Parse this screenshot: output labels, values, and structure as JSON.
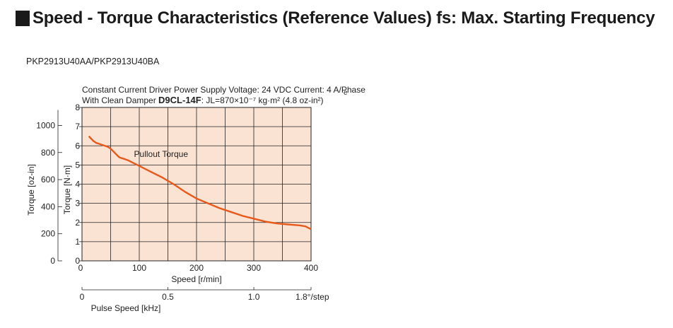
{
  "header": {
    "title": "Speed - Torque Characteristics (Reference Values) fs: Max. Starting Frequency"
  },
  "model": "PKP2913U40AA/PKP2913U40BA",
  "conditions": {
    "line1": "Constant Current Driver  Power Supply Voltage: 24 VDC  Current: 4 A/Phase",
    "line2_prefix": "With Clean Damper ",
    "damper_model": "D9CL-14F",
    "line2_suffix": ": JL=870×10⁻⁷ kg·m² (4.8 oz-in²)",
    "stray_mark": "e"
  },
  "chart_data": {
    "type": "line",
    "x": {
      "label": "Speed [r/min]",
      "lim": [
        0,
        400
      ],
      "major_ticks": [
        0,
        100,
        200,
        300,
        400
      ],
      "tick_labels": [
        "0",
        "100",
        "200",
        "300",
        "400"
      ],
      "minor_step": 50
    },
    "x_secondary": {
      "label": "Pulse Speed [kHz]",
      "lim": [
        0,
        1.333
      ],
      "ticks": [
        0,
        0.5,
        1.0
      ],
      "tick_labels": [
        "0",
        "0.5",
        "1.0"
      ],
      "step_angle_note": "1.8°/step"
    },
    "y": {
      "label": "Torque [N·m]",
      "lim": [
        0,
        8
      ],
      "ticks": [
        0,
        1,
        2,
        3,
        4,
        5,
        6,
        7,
        8
      ],
      "tick_labels": [
        "0",
        "1",
        "2",
        "3",
        "4",
        "5",
        "6",
        "7",
        "8"
      ]
    },
    "y_secondary": {
      "label": "Torque [oz-in]",
      "ticks": [
        0,
        200,
        400,
        600,
        800,
        1000
      ],
      "tick_labels": [
        "0",
        "200",
        "400",
        "600",
        "800",
        "1000"
      ],
      "factor": 141.6
    },
    "grid": true,
    "plot_background": "#fbe3d4",
    "series": [
      {
        "name": "Pullout Torque",
        "color": "#e8591c",
        "points": [
          [
            12,
            6.5
          ],
          [
            15,
            6.4
          ],
          [
            20,
            6.25
          ],
          [
            25,
            6.15
          ],
          [
            30,
            6.1
          ],
          [
            35,
            6.05
          ],
          [
            40,
            6.0
          ],
          [
            45,
            5.95
          ],
          [
            50,
            5.85
          ],
          [
            55,
            5.7
          ],
          [
            60,
            5.55
          ],
          [
            65,
            5.4
          ],
          [
            70,
            5.35
          ],
          [
            75,
            5.3
          ],
          [
            80,
            5.25
          ],
          [
            90,
            5.1
          ],
          [
            100,
            4.95
          ],
          [
            120,
            4.65
          ],
          [
            140,
            4.35
          ],
          [
            160,
            4.0
          ],
          [
            180,
            3.6
          ],
          [
            200,
            3.25
          ],
          [
            220,
            3.0
          ],
          [
            240,
            2.75
          ],
          [
            260,
            2.55
          ],
          [
            280,
            2.35
          ],
          [
            300,
            2.2
          ],
          [
            320,
            2.05
          ],
          [
            340,
            1.95
          ],
          [
            360,
            1.9
          ],
          [
            380,
            1.85
          ],
          [
            390,
            1.8
          ],
          [
            400,
            1.65
          ]
        ]
      }
    ],
    "annotations": [
      {
        "text": "Pullout Torque",
        "x": 138,
        "y": 5.2
      }
    ]
  }
}
